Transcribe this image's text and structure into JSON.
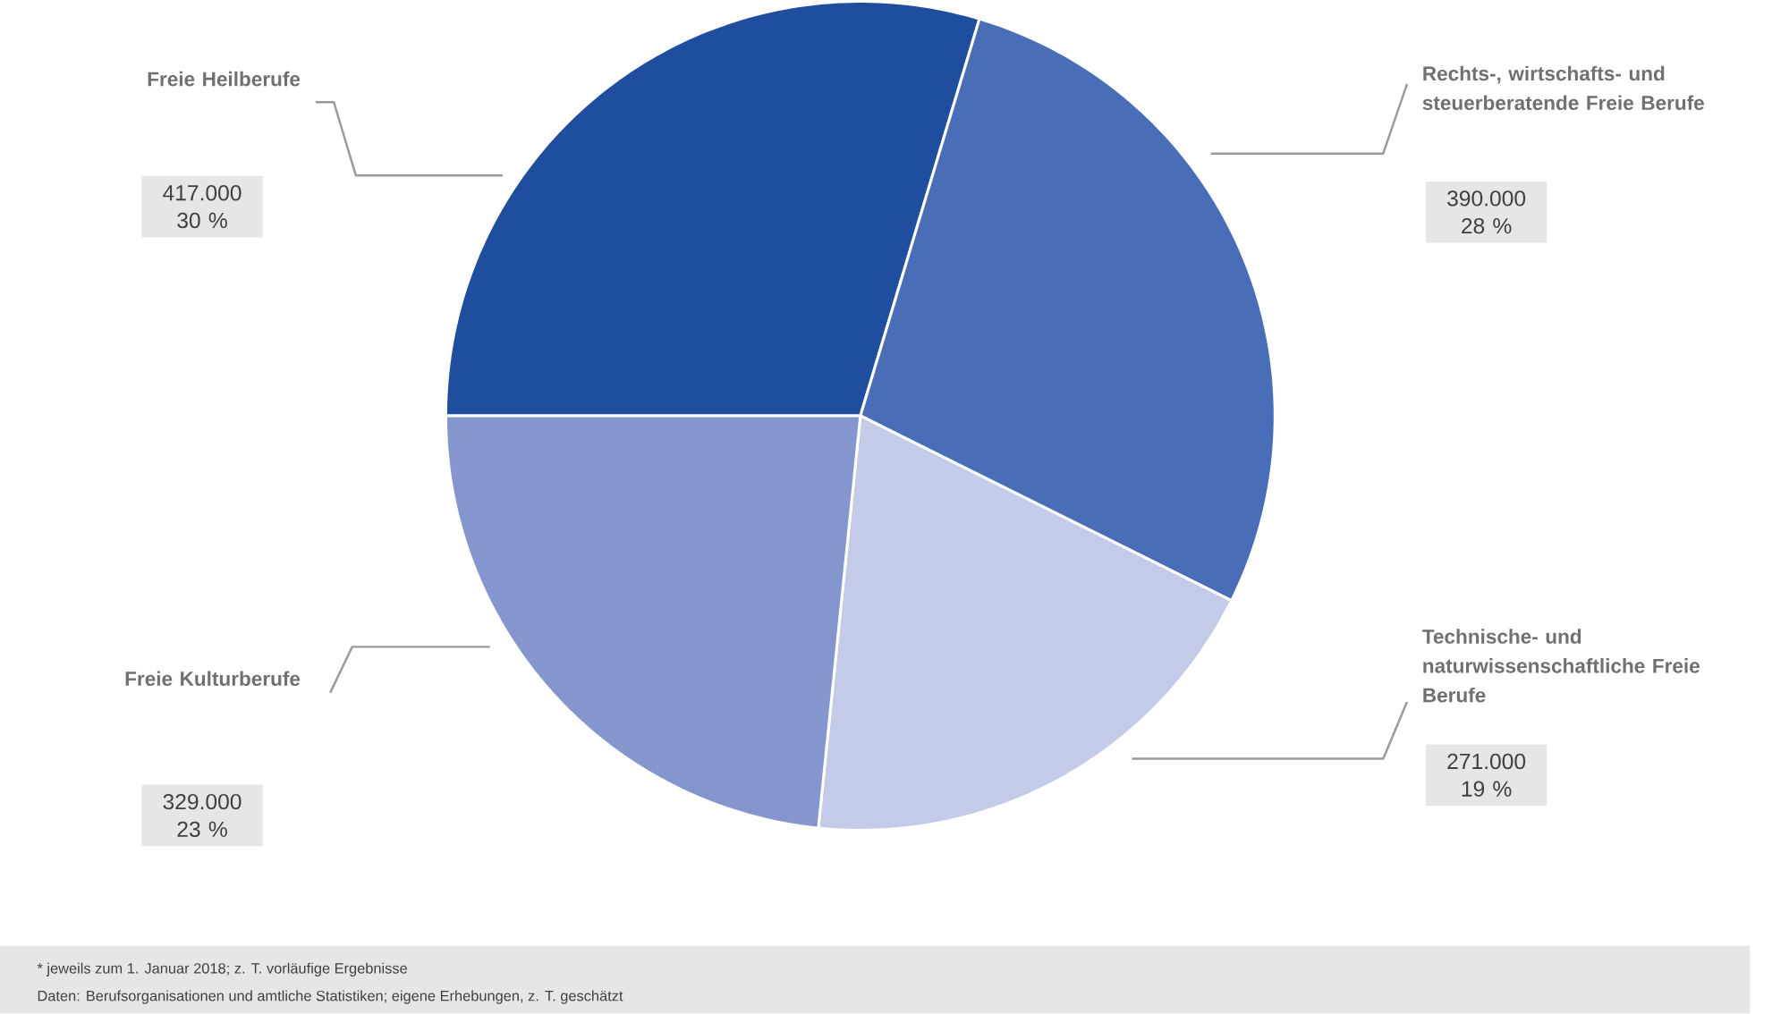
{
  "chart_data": {
    "type": "pie",
    "categories": [
      "Freie Heilberufe",
      "Rechts-, wirtschafts- und steuerberatende Freie Berufe",
      "Technische- und naturwissenschaftliche Freie Berufe",
      "Freie Kulturberufe"
    ],
    "values": [
      417000,
      390000,
      271000,
      329000
    ],
    "colors": [
      "#1f4e9e",
      "#4a6db8",
      "#c3cbe8",
      "#8596cf"
    ],
    "value_labels": [
      "417.000 30 %",
      "390.000 28 %",
      "271.000 19 %",
      "329.000 23 %"
    ],
    "annotations": [
      "* jeweils zum 1. Januar 2018; z. T. vorläufige Ergebnisse",
      "Daten: Berufsorganisationen und amtliche Statistiken; eigene Erhebungen, z. T. geschätzt"
    ]
  }
}
